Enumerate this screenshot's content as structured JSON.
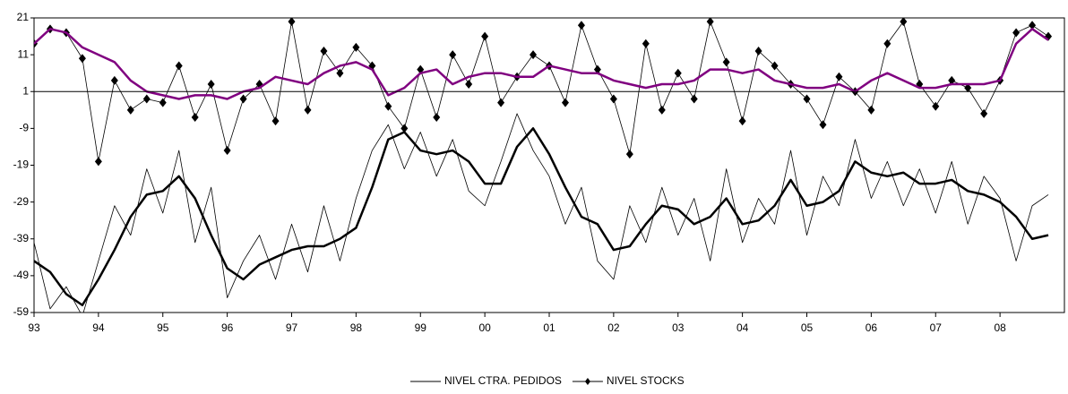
{
  "chart_data": {
    "type": "line",
    "x": [
      93,
      93.25,
      93.5,
      93.75,
      94,
      94.25,
      94.5,
      94.75,
      95,
      95.25,
      95.5,
      95.75,
      96,
      96.25,
      96.5,
      96.75,
      97,
      97.25,
      97.5,
      97.75,
      98,
      98.25,
      98.5,
      98.75,
      99,
      99.25,
      99.5,
      99.75,
      100,
      100.25,
      100.5,
      100.75,
      101,
      101.25,
      101.5,
      101.75,
      102,
      102.25,
      102.5,
      102.75,
      103,
      103.25,
      103.5,
      103.75,
      104,
      104.25,
      104.5,
      104.75,
      105,
      105.25,
      105.5,
      105.75,
      106,
      106.25,
      106.5,
      106.75,
      107,
      107.25,
      107.5,
      107.75,
      108,
      108.25,
      108.5,
      108.75
    ],
    "series": [
      {
        "name": "NIVEL CTRA. PEDIDOS",
        "color": "#000000",
        "width": 0.8,
        "values": [
          -40,
          -58,
          -52,
          -60,
          -45,
          -30,
          -38,
          -20,
          -32,
          -15,
          -40,
          -25,
          -55,
          -45,
          -38,
          -50,
          -35,
          -48,
          -30,
          -45,
          -28,
          -15,
          -8,
          -20,
          -10,
          -22,
          -12,
          -26,
          -30,
          -18,
          -5,
          -15,
          -22,
          -35,
          -25,
          -45,
          -50,
          -30,
          -40,
          -25,
          -38,
          -28,
          -45,
          -20,
          -40,
          -28,
          -35,
          -15,
          -38,
          -22,
          -30,
          -12,
          -28,
          -18,
          -30,
          -20,
          -32,
          -18,
          -35,
          -22,
          -28,
          -45,
          -30,
          -27
        ]
      },
      {
        "color": "#000000",
        "width": 2.5,
        "values": [
          -45,
          -48,
          -54,
          -57,
          -50,
          -42,
          -33,
          -27,
          -26,
          -22,
          -28,
          -38,
          -47,
          -50,
          -46,
          -44,
          -42,
          -41,
          -41,
          -39,
          -36,
          -25,
          -12,
          -10,
          -15,
          -16,
          -15,
          -18,
          -24,
          -24,
          -14,
          -9,
          -16,
          -25,
          -33,
          -35,
          -42,
          -41,
          -35,
          -30,
          -31,
          -35,
          -33,
          -28,
          -35,
          -34,
          -30,
          -23,
          -30,
          -29,
          -26,
          -18,
          -21,
          -22,
          -21,
          -24,
          -24,
          -23,
          -26,
          -27,
          -29,
          -33,
          -39,
          -38
        ]
      },
      {
        "name": "NIVEL STOCKS",
        "color": "#000000",
        "width": 0.8,
        "markers": true,
        "values": [
          14,
          18,
          17,
          10,
          -18,
          4,
          -4,
          -1,
          -2,
          8,
          -6,
          3,
          -15,
          -1,
          3,
          -7,
          20,
          -4,
          12,
          6,
          13,
          8,
          -3,
          -9,
          7,
          -6,
          11,
          3,
          16,
          -2,
          5,
          11,
          8,
          -2,
          19,
          7,
          -1,
          -16,
          14,
          -4,
          6,
          -1,
          20,
          9,
          -7,
          12,
          8,
          3,
          -1,
          -8,
          5,
          1,
          -4,
          14,
          20,
          3,
          -3,
          4,
          2,
          -5,
          4,
          17,
          19,
          16
        ]
      },
      {
        "color": "#800080",
        "width": 2.5,
        "values": [
          14,
          18,
          17,
          13,
          11,
          9,
          4,
          1,
          0,
          -1,
          0,
          0,
          -1,
          1,
          2,
          5,
          4,
          3,
          6,
          8,
          9,
          7,
          0,
          2,
          6,
          7,
          3,
          5,
          6,
          6,
          5,
          5,
          8,
          7,
          6,
          6,
          4,
          3,
          2,
          3,
          3,
          4,
          7,
          7,
          6,
          7,
          4,
          3,
          2,
          2,
          3,
          1,
          4,
          6,
          4,
          2,
          2,
          3,
          3,
          3,
          4,
          14,
          18,
          15
        ]
      }
    ],
    "xlim": [
      93,
      109
    ],
    "ylim": [
      -59,
      21
    ],
    "xticks": [
      93,
      94,
      95,
      96,
      97,
      98,
      99,
      {
        "value": 100,
        "label": "00"
      },
      {
        "value": 101,
        "label": "01"
      },
      {
        "value": 102,
        "label": "02"
      },
      {
        "value": 103,
        "label": "03"
      },
      {
        "value": 104,
        "label": "04"
      },
      {
        "value": 105,
        "label": "05"
      },
      {
        "value": 106,
        "label": "06"
      },
      {
        "value": 107,
        "label": "07"
      },
      {
        "value": 108,
        "label": "08"
      }
    ],
    "yticks": [
      21,
      11,
      1,
      -9,
      -19,
      -29,
      -39,
      -49,
      -59
    ],
    "baseline": 1,
    "legend": "bottom"
  }
}
